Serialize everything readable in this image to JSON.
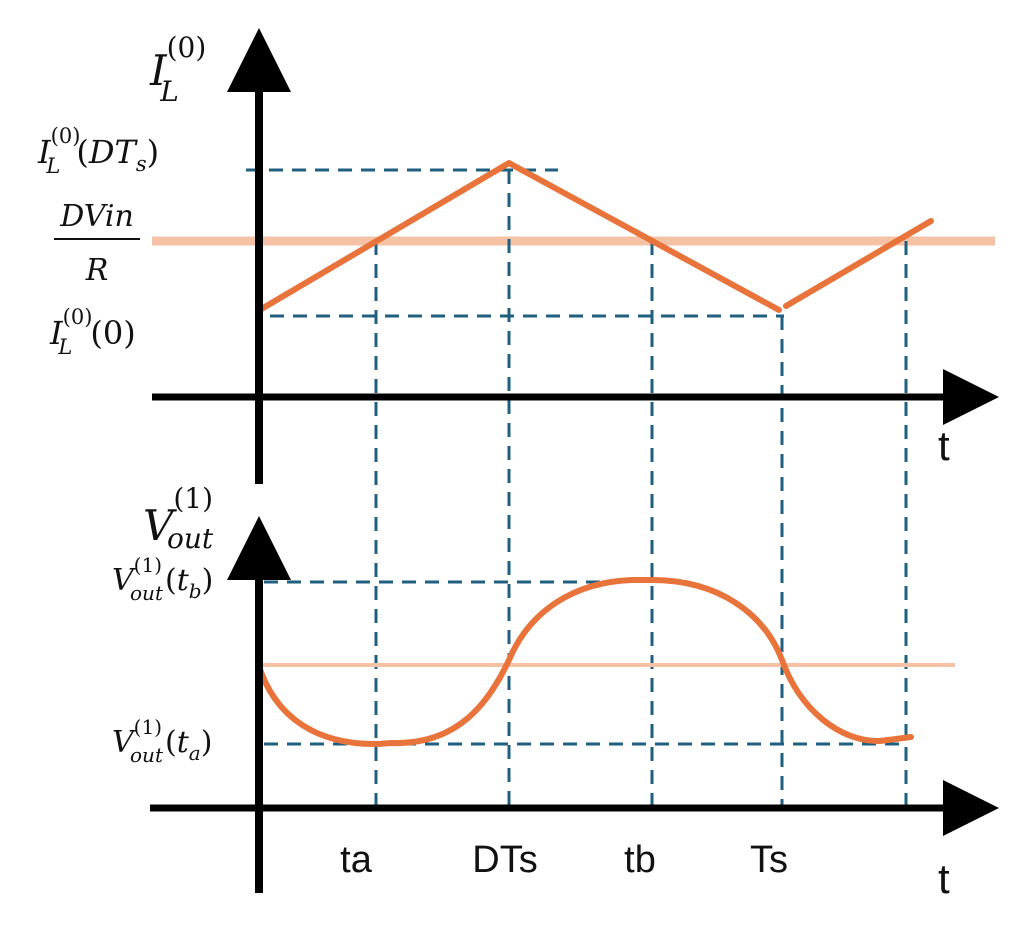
{
  "colors": {
    "axis": "#000000",
    "curve": "#E8743B",
    "average": "#F5C2A5",
    "guide": "#1F5F7F"
  },
  "top_plot": {
    "y_label": {
      "base": "I",
      "sub": "L",
      "sup": "(0)"
    },
    "t_label": "t",
    "peak_label": {
      "base": "I",
      "sub": "L",
      "sup": "(0)",
      "arg_open": "(",
      "arg_var": "DT",
      "arg_sub": "s",
      "arg_close": ")"
    },
    "avg_label": {
      "numerator": "DVin",
      "denominator": "R"
    },
    "min_label": {
      "base": "I",
      "sub": "L",
      "sup": "(0)",
      "arg": "(0)"
    }
  },
  "bottom_plot": {
    "y_label": {
      "base": "V",
      "sub": "out",
      "sup": "(1)"
    },
    "t_label": "t",
    "max_label": {
      "base": "V",
      "sub": "out",
      "sup": "(1)",
      "arg_open": "(",
      "arg_var": "t",
      "arg_sub": "b",
      "arg_close": ")"
    },
    "min_label": {
      "base": "V",
      "sub": "out",
      "sup": "(1)",
      "arg_open": "(",
      "arg_var": "t",
      "arg_sub": "a",
      "arg_close": ")"
    }
  },
  "time_ticks": [
    "ta",
    "DTs",
    "tb",
    "Ts"
  ]
}
